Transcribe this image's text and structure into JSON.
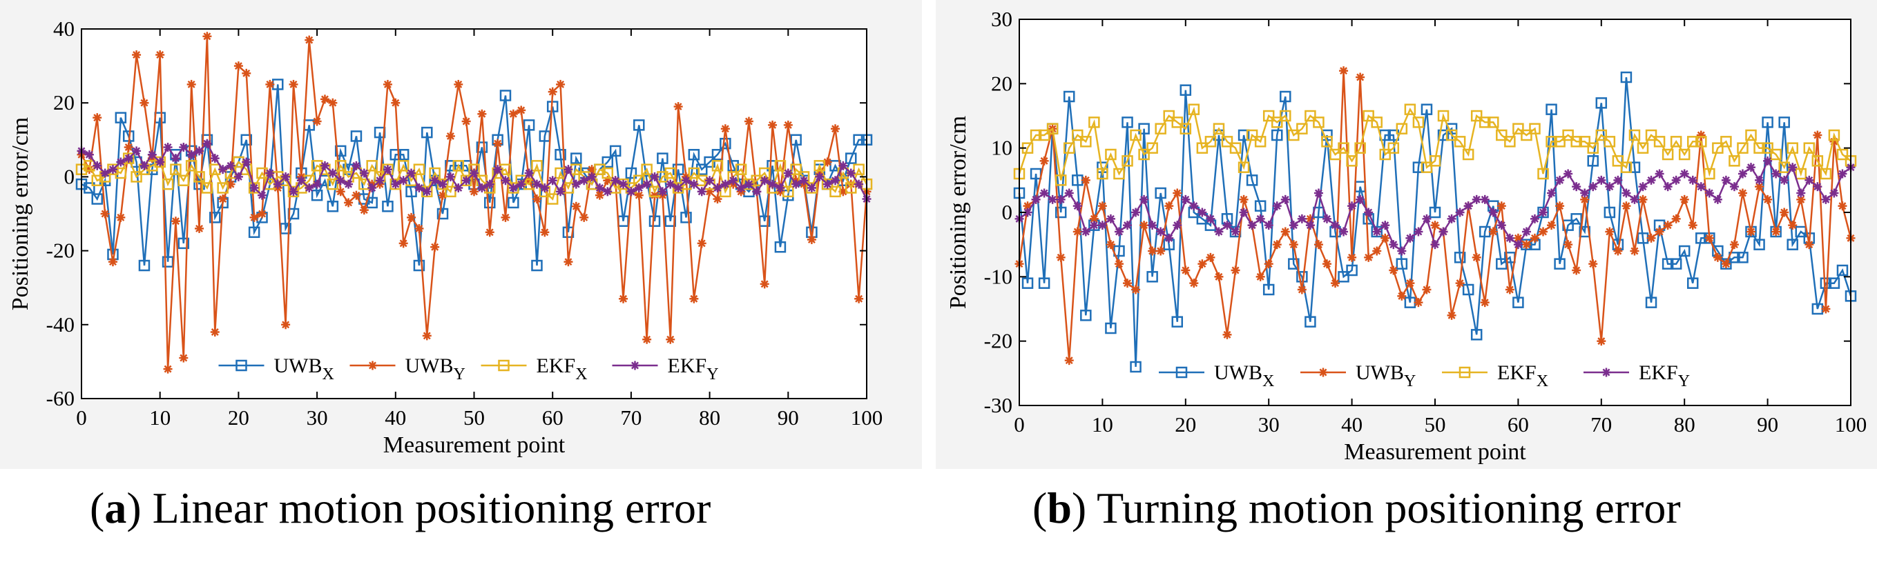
{
  "chart_data": [
    {
      "type": "line",
      "panel": "a",
      "xlabel": "Measurement point",
      "ylabel": "Positioning error/cm",
      "xlim": [
        0,
        100
      ],
      "ylim": [
        -60,
        40
      ],
      "xticks": [
        "0",
        "10",
        "20",
        "30",
        "40",
        "50",
        "60",
        "70",
        "80",
        "90",
        "100"
      ],
      "yticks": [
        "-60",
        "-40",
        "-20",
        "0",
        "20",
        "40"
      ],
      "legend_position": "bottom-center",
      "series": [
        {
          "name": "UWB",
          "sub": "X",
          "color": "#1f6fb8",
          "marker": "square",
          "values": [
            -2,
            -3,
            -6,
            -1,
            -21,
            16,
            11,
            4,
            -24,
            2,
            16,
            -23,
            6,
            -18,
            7,
            -2,
            10,
            -11,
            -7,
            0,
            4,
            10,
            -15,
            -11,
            -2,
            25,
            -14,
            -10,
            1,
            14,
            -5,
            -1,
            -8,
            7,
            2,
            11,
            -6,
            -7,
            12,
            -8,
            6,
            6,
            -4,
            -24,
            12,
            -1,
            -10,
            3,
            3,
            3,
            -2,
            8,
            -7,
            10,
            22,
            -7,
            -2,
            14,
            -24,
            11,
            19,
            6,
            -15,
            5,
            1,
            -2,
            2,
            4,
            7,
            -12,
            1,
            14,
            -1,
            -12,
            5,
            -12,
            2,
            -11,
            6,
            2,
            4,
            6,
            9,
            3,
            -2,
            -4,
            -1,
            -12,
            3,
            -19,
            -5,
            10,
            -1,
            -15,
            2,
            -2,
            3,
            -1,
            5,
            10,
            10
          ]
        },
        {
          "name": "UWB",
          "sub": "Y",
          "color": "#d95319",
          "marker": "asterisk",
          "values": [
            6,
            2,
            16,
            -10,
            -23,
            -11,
            8,
            33,
            20,
            5,
            33,
            -52,
            -12,
            -49,
            25,
            -14,
            38,
            -42,
            -6,
            -2,
            30,
            28,
            -11,
            -10,
            25,
            -3,
            -40,
            25,
            0,
            37,
            15,
            21,
            20,
            -4,
            -7,
            -5,
            -9,
            -2,
            -2,
            25,
            20,
            -18,
            -11,
            -14,
            -43,
            -19,
            -5,
            11,
            25,
            15,
            -4,
            17,
            -15,
            9,
            -11,
            17,
            18,
            -1,
            -6,
            -15,
            23,
            25,
            -23,
            -8,
            -11,
            2,
            -5,
            -1,
            -1,
            -33,
            -4,
            -5,
            -44,
            -5,
            -5,
            -44,
            19,
            0,
            -33,
            -18,
            -4,
            -6,
            13,
            -2,
            -4,
            15,
            -4,
            -29,
            14,
            -4,
            14,
            -1,
            -2,
            -17,
            1,
            4,
            13,
            -4,
            -2,
            -33,
            -4
          ]
        },
        {
          "name": "EKF",
          "sub": "X",
          "color": "#e6b422",
          "marker": "square",
          "values": [
            2,
            3,
            -1,
            0,
            2,
            1,
            5,
            0,
            2,
            3,
            4,
            -2,
            2,
            -1,
            3,
            0,
            -3,
            2,
            -3,
            1,
            4,
            2,
            -3,
            1,
            -2,
            0,
            -1,
            -4,
            -3,
            -1,
            3,
            2,
            -2,
            3,
            0,
            1,
            -2,
            3,
            0,
            2,
            -2,
            3,
            -1,
            2,
            -4,
            1,
            -2,
            -4,
            3,
            -1,
            2,
            -1,
            -3,
            1,
            2,
            -3,
            -1,
            -2,
            3,
            -4,
            -6,
            1,
            -3,
            2,
            0,
            -2,
            2,
            1,
            -3,
            -2,
            -3,
            -1,
            2,
            -4,
            0,
            1,
            -3,
            -2,
            1,
            -1,
            -2,
            3,
            -4,
            0,
            2,
            -2,
            -1,
            1,
            -3,
            3,
            -4,
            2,
            0,
            -3,
            3,
            -2,
            -4,
            1,
            -3,
            2,
            -2
          ]
        },
        {
          "name": "EKF",
          "sub": "Y",
          "color": "#7b2e8e",
          "marker": "asterisk",
          "values": [
            7,
            6,
            3,
            1,
            2,
            4,
            5,
            7,
            3,
            6,
            4,
            8,
            5,
            8,
            6,
            7,
            9,
            5,
            2,
            3,
            0,
            4,
            -3,
            -5,
            1,
            -2,
            0,
            -4,
            -1,
            -3,
            -2,
            3,
            1,
            -1,
            -2,
            3,
            1,
            -3,
            -1,
            2,
            -2,
            -1,
            1,
            -3,
            -4,
            -1,
            -2,
            0,
            -3,
            -1,
            1,
            -3,
            -2,
            2,
            -1,
            -3,
            -2,
            1,
            -2,
            -3,
            -1,
            -4,
            2,
            -2,
            -1,
            0,
            -3,
            -4,
            -1,
            -2,
            -4,
            -3,
            -2,
            0,
            -4,
            -2,
            -3,
            -1,
            -2,
            -4,
            -1,
            -3,
            -2,
            -1,
            -3,
            -2,
            -4,
            -1,
            -2,
            -3,
            1,
            -2,
            -1,
            -3,
            0,
            -2,
            -1,
            3,
            1,
            -2,
            -6
          ]
        }
      ]
    },
    {
      "type": "line",
      "panel": "b",
      "xlabel": "Measurement point",
      "ylabel": "Positioning error/cm",
      "xlim": [
        0,
        100
      ],
      "ylim": [
        -30,
        30
      ],
      "xticks": [
        "0",
        "10",
        "20",
        "30",
        "40",
        "50",
        "60",
        "70",
        "80",
        "90",
        "100"
      ],
      "yticks": [
        "-30",
        "-20",
        "-10",
        "0",
        "10",
        "20",
        "30"
      ],
      "legend_position": "bottom-center",
      "series": [
        {
          "name": "UWB",
          "sub": "X",
          "color": "#1f6fb8",
          "marker": "square",
          "values": [
            3,
            -11,
            6,
            -11,
            13,
            0,
            18,
            5,
            -16,
            -2,
            7,
            -18,
            -6,
            14,
            -24,
            13,
            -10,
            3,
            -5,
            -17,
            19,
            0,
            -1,
            -2,
            12,
            -1,
            -3,
            12,
            5,
            1,
            -12,
            12,
            18,
            -8,
            -10,
            -17,
            0,
            12,
            -3,
            -10,
            -9,
            4,
            -1,
            -3,
            12,
            12,
            -8,
            -14,
            7,
            16,
            0,
            12,
            13,
            -7,
            -12,
            -19,
            -3,
            1,
            -8,
            -7,
            -14,
            -5,
            -5,
            0,
            16,
            -8,
            -2,
            -1,
            -3,
            8,
            17,
            0,
            -5,
            21,
            7,
            -4,
            -14,
            -2,
            -8,
            -8,
            -6,
            -11,
            -4,
            -4,
            -6,
            -8,
            -7,
            -7,
            -3,
            -5,
            14,
            -3,
            14,
            -5,
            -3,
            -4,
            -15,
            -11,
            -11,
            -9,
            -13
          ]
        },
        {
          "name": "UWB",
          "sub": "Y",
          "color": "#d95319",
          "marker": "asterisk",
          "values": [
            -8,
            1,
            2,
            8,
            13,
            -7,
            -23,
            -3,
            5,
            -1,
            1,
            -5,
            -8,
            -11,
            -12,
            -2,
            -6,
            -6,
            1,
            3,
            -9,
            -11,
            -8,
            -7,
            -10,
            -19,
            -9,
            2,
            -2,
            -10,
            -8,
            -5,
            -3,
            -5,
            -12,
            -1,
            -5,
            -8,
            -11,
            22,
            -7,
            21,
            -7,
            -6,
            -4,
            -9,
            -13,
            -11,
            -14,
            -12,
            -2,
            -3,
            -16,
            -11,
            1,
            -7,
            -14,
            -3,
            1,
            -12,
            -4,
            -5,
            -4,
            -3,
            -2,
            1,
            -5,
            -9,
            2,
            -8,
            -20,
            -3,
            -6,
            1,
            -6,
            2,
            -4,
            -3,
            -2,
            -1,
            2,
            -2,
            12,
            -4,
            -7,
            -8,
            -5,
            3,
            -3,
            4,
            2,
            -3,
            0,
            -2,
            2,
            -5,
            12,
            -15,
            11,
            1,
            -4
          ]
        },
        {
          "name": "EKF",
          "sub": "X",
          "color": "#e6b422",
          "marker": "square",
          "values": [
            6,
            10,
            12,
            12,
            13,
            5,
            10,
            12,
            11,
            14,
            6,
            9,
            6,
            8,
            12,
            9,
            10,
            13,
            15,
            14,
            13,
            16,
            10,
            11,
            13,
            11,
            10,
            7,
            12,
            11,
            15,
            14,
            15,
            12,
            13,
            15,
            14,
            11,
            9,
            10,
            8,
            10,
            15,
            14,
            9,
            10,
            13,
            16,
            14,
            7,
            8,
            15,
            12,
            11,
            9,
            15,
            14,
            14,
            12,
            11,
            13,
            12,
            13,
            6,
            11,
            11,
            12,
            11,
            11,
            10,
            12,
            11,
            8,
            7,
            12,
            10,
            12,
            11,
            9,
            11,
            9,
            11,
            11,
            6,
            10,
            11,
            8,
            10,
            12,
            10,
            10,
            9,
            7,
            10,
            6,
            10,
            8,
            6,
            12,
            9,
            8
          ]
        },
        {
          "name": "EKF",
          "sub": "Y",
          "color": "#7b2e8e",
          "marker": "asterisk",
          "values": [
            -1,
            0,
            2,
            3,
            2,
            2,
            3,
            1,
            -3,
            -2,
            -2,
            -1,
            -3,
            -2,
            0,
            2,
            -2,
            -3,
            -4,
            -2,
            2,
            1,
            0,
            -1,
            -3,
            -2,
            -3,
            0,
            -2,
            -1,
            -2,
            1,
            2,
            -2,
            -1,
            -2,
            3,
            -1,
            -2,
            -3,
            1,
            2,
            0,
            -3,
            -2,
            -5,
            -6,
            -4,
            -3,
            -1,
            -5,
            -3,
            -1,
            0,
            1,
            2,
            2,
            0,
            -2,
            -4,
            -5,
            -3,
            -1,
            0,
            3,
            5,
            6,
            4,
            3,
            4,
            5,
            4,
            5,
            3,
            2,
            4,
            5,
            6,
            4,
            5,
            6,
            5,
            4,
            3,
            2,
            5,
            4,
            6,
            7,
            5,
            8,
            6,
            5,
            7,
            3,
            5,
            4,
            2,
            3,
            6,
            7
          ]
        }
      ]
    }
  ],
  "captions": {
    "a_letter": "a",
    "a_text": " Linear motion positioning error",
    "b_letter": "b",
    "b_text": " Turning motion positioning error"
  }
}
